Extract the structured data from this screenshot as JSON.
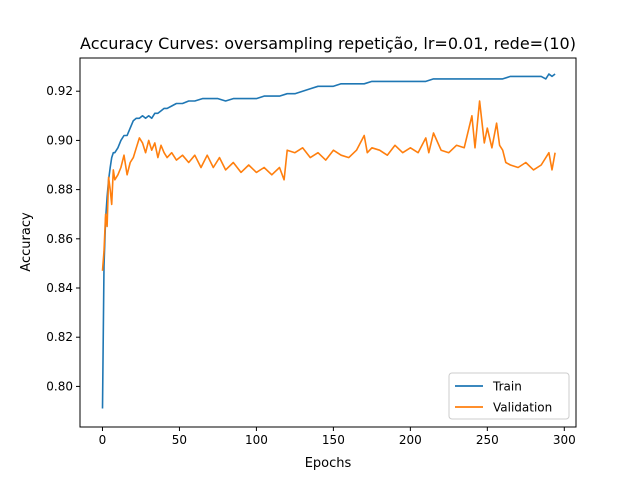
{
  "chart_data": {
    "type": "line",
    "title": "Accuracy Curves: oversampling repetição, lr=0.01, rede=(10)",
    "xlabel": "Epochs",
    "ylabel": "Accuracy",
    "xlim": [
      -14.6,
      307.6
    ],
    "ylim": [
      0.7835,
      0.9335
    ],
    "xticks": [
      0,
      50,
      100,
      150,
      200,
      250,
      300
    ],
    "yticks": [
      0.8,
      0.82,
      0.84,
      0.86,
      0.88,
      0.9,
      0.92
    ],
    "xtick_labels": [
      "0",
      "50",
      "100",
      "150",
      "200",
      "250",
      "300"
    ],
    "ytick_labels": [
      "0.80",
      "0.82",
      "0.84",
      "0.86",
      "0.88",
      "0.90",
      "0.92"
    ],
    "grid": false,
    "legend_position": "lower-right",
    "series": [
      {
        "name": "Train",
        "color": "#1f77b4",
        "points": [
          [
            0,
            0.791
          ],
          [
            1,
            0.849
          ],
          [
            2,
            0.868
          ],
          [
            3,
            0.877
          ],
          [
            4,
            0.884
          ],
          [
            5,
            0.889
          ],
          [
            6,
            0.893
          ],
          [
            7,
            0.895
          ],
          [
            8,
            0.895
          ],
          [
            10,
            0.897
          ],
          [
            12,
            0.9
          ],
          [
            14,
            0.902
          ],
          [
            16,
            0.902
          ],
          [
            18,
            0.905
          ],
          [
            20,
            0.908
          ],
          [
            22,
            0.909
          ],
          [
            24,
            0.909
          ],
          [
            26,
            0.91
          ],
          [
            28,
            0.909
          ],
          [
            30,
            0.91
          ],
          [
            32,
            0.909
          ],
          [
            34,
            0.911
          ],
          [
            36,
            0.911
          ],
          [
            38,
            0.912
          ],
          [
            40,
            0.913
          ],
          [
            42,
            0.913
          ],
          [
            45,
            0.914
          ],
          [
            48,
            0.915
          ],
          [
            52,
            0.915
          ],
          [
            56,
            0.916
          ],
          [
            60,
            0.916
          ],
          [
            65,
            0.917
          ],
          [
            70,
            0.917
          ],
          [
            75,
            0.917
          ],
          [
            80,
            0.916
          ],
          [
            85,
            0.917
          ],
          [
            90,
            0.917
          ],
          [
            95,
            0.917
          ],
          [
            100,
            0.917
          ],
          [
            105,
            0.918
          ],
          [
            110,
            0.918
          ],
          [
            115,
            0.918
          ],
          [
            120,
            0.919
          ],
          [
            125,
            0.919
          ],
          [
            130,
            0.92
          ],
          [
            135,
            0.921
          ],
          [
            140,
            0.922
          ],
          [
            145,
            0.922
          ],
          [
            150,
            0.922
          ],
          [
            155,
            0.923
          ],
          [
            160,
            0.923
          ],
          [
            165,
            0.923
          ],
          [
            170,
            0.923
          ],
          [
            175,
            0.924
          ],
          [
            180,
            0.924
          ],
          [
            185,
            0.924
          ],
          [
            190,
            0.924
          ],
          [
            195,
            0.924
          ],
          [
            200,
            0.924
          ],
          [
            205,
            0.924
          ],
          [
            210,
            0.924
          ],
          [
            215,
            0.925
          ],
          [
            220,
            0.925
          ],
          [
            225,
            0.925
          ],
          [
            230,
            0.925
          ],
          [
            235,
            0.925
          ],
          [
            240,
            0.925
          ],
          [
            245,
            0.925
          ],
          [
            250,
            0.925
          ],
          [
            255,
            0.925
          ],
          [
            260,
            0.925
          ],
          [
            265,
            0.926
          ],
          [
            270,
            0.926
          ],
          [
            275,
            0.926
          ],
          [
            280,
            0.926
          ],
          [
            285,
            0.926
          ],
          [
            288,
            0.925
          ],
          [
            290,
            0.927
          ],
          [
            292,
            0.926
          ],
          [
            294,
            0.927
          ]
        ]
      },
      {
        "name": "Validation",
        "color": "#ff7f0e",
        "points": [
          [
            0,
            0.847
          ],
          [
            1,
            0.855
          ],
          [
            2,
            0.87
          ],
          [
            3,
            0.865
          ],
          [
            4,
            0.885
          ],
          [
            5,
            0.88
          ],
          [
            6,
            0.874
          ],
          [
            7,
            0.888
          ],
          [
            8,
            0.884
          ],
          [
            10,
            0.886
          ],
          [
            12,
            0.889
          ],
          [
            14,
            0.894
          ],
          [
            16,
            0.886
          ],
          [
            18,
            0.891
          ],
          [
            20,
            0.893
          ],
          [
            22,
            0.897
          ],
          [
            24,
            0.901
          ],
          [
            26,
            0.899
          ],
          [
            28,
            0.895
          ],
          [
            30,
            0.9
          ],
          [
            32,
            0.896
          ],
          [
            34,
            0.899
          ],
          [
            36,
            0.893
          ],
          [
            38,
            0.898
          ],
          [
            40,
            0.895
          ],
          [
            42,
            0.893
          ],
          [
            45,
            0.895
          ],
          [
            48,
            0.892
          ],
          [
            52,
            0.894
          ],
          [
            56,
            0.891
          ],
          [
            60,
            0.894
          ],
          [
            64,
            0.889
          ],
          [
            68,
            0.894
          ],
          [
            72,
            0.889
          ],
          [
            76,
            0.893
          ],
          [
            80,
            0.888
          ],
          [
            85,
            0.891
          ],
          [
            90,
            0.887
          ],
          [
            95,
            0.89
          ],
          [
            100,
            0.887
          ],
          [
            105,
            0.889
          ],
          [
            110,
            0.886
          ],
          [
            115,
            0.889
          ],
          [
            118,
            0.884
          ],
          [
            120,
            0.896
          ],
          [
            125,
            0.895
          ],
          [
            130,
            0.897
          ],
          [
            135,
            0.893
          ],
          [
            140,
            0.895
          ],
          [
            145,
            0.892
          ],
          [
            150,
            0.896
          ],
          [
            155,
            0.894
          ],
          [
            160,
            0.893
          ],
          [
            165,
            0.896
          ],
          [
            170,
            0.902
          ],
          [
            172,
            0.895
          ],
          [
            175,
            0.897
          ],
          [
            180,
            0.896
          ],
          [
            185,
            0.894
          ],
          [
            190,
            0.898
          ],
          [
            195,
            0.895
          ],
          [
            200,
            0.897
          ],
          [
            205,
            0.895
          ],
          [
            210,
            0.901
          ],
          [
            212,
            0.895
          ],
          [
            215,
            0.903
          ],
          [
            220,
            0.896
          ],
          [
            225,
            0.895
          ],
          [
            230,
            0.898
          ],
          [
            235,
            0.897
          ],
          [
            240,
            0.91
          ],
          [
            242,
            0.897
          ],
          [
            245,
            0.916
          ],
          [
            248,
            0.899
          ],
          [
            250,
            0.905
          ],
          [
            253,
            0.897
          ],
          [
            256,
            0.907
          ],
          [
            258,
            0.898
          ],
          [
            260,
            0.896
          ],
          [
            262,
            0.891
          ],
          [
            265,
            0.89
          ],
          [
            270,
            0.889
          ],
          [
            275,
            0.891
          ],
          [
            280,
            0.888
          ],
          [
            285,
            0.89
          ],
          [
            290,
            0.895
          ],
          [
            292,
            0.888
          ],
          [
            294,
            0.895
          ]
        ]
      }
    ]
  }
}
